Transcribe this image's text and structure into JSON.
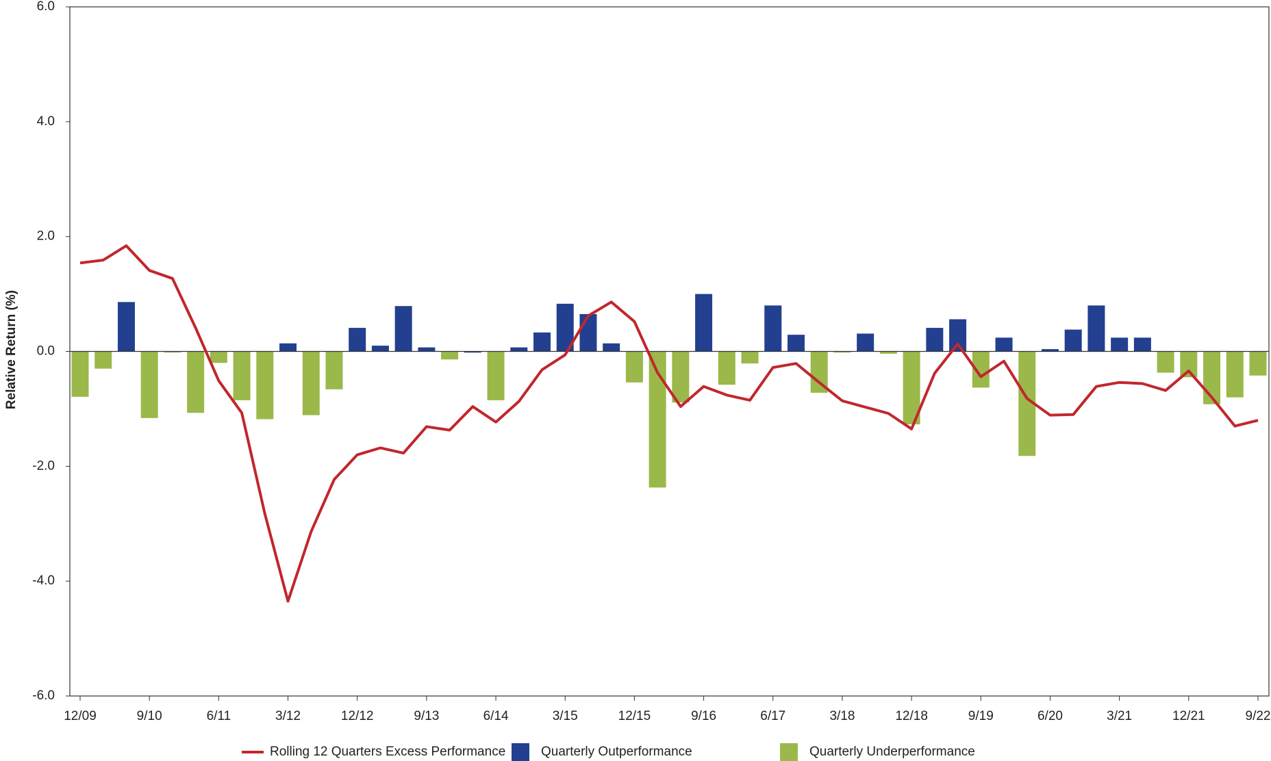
{
  "chart_data": {
    "type": "bar",
    "y_label": "Relative Return (%)",
    "categories": [
      "12/09",
      null,
      null,
      "9/10",
      null,
      null,
      "6/11",
      null,
      null,
      "3/12",
      null,
      null,
      "12/12",
      null,
      null,
      "9/13",
      null,
      null,
      "6/14",
      null,
      null,
      "3/15",
      null,
      null,
      "12/15",
      null,
      null,
      "9/16",
      null,
      null,
      "6/17",
      null,
      null,
      "3/18",
      null,
      null,
      "12/18",
      null,
      null,
      "9/19",
      null,
      null,
      "6/20",
      null,
      null,
      "3/21",
      null,
      null,
      "12/21",
      null,
      null,
      "9/22"
    ],
    "series": [
      {
        "name": "Rolling 12 Quarters Excess Performance",
        "kind": "line",
        "color": "#c0272d",
        "values": [
          1.54,
          1.59,
          1.84,
          1.41,
          1.27,
          0.41,
          -0.51,
          -1.07,
          -2.83,
          -4.35,
          -3.14,
          -2.23,
          -1.8,
          -1.68,
          -1.77,
          -1.31,
          -1.37,
          -0.96,
          -1.23,
          -0.87,
          -0.32,
          -0.06,
          0.62,
          0.86,
          0.52,
          -0.37,
          -0.96,
          -0.61,
          -0.76,
          -0.85,
          -0.28,
          -0.21,
          -0.54,
          -0.86,
          -0.97,
          -1.08,
          -1.35,
          -0.38,
          0.13,
          -0.44,
          -0.17,
          -0.82,
          -1.11,
          -1.1,
          -0.61,
          -0.54,
          -0.56,
          -0.68,
          -0.34,
          -0.8,
          -1.3,
          -1.2
        ]
      },
      {
        "name": "Quarterly Outperformance",
        "kind": "bar",
        "color": "#233f8f",
        "values": [
          null,
          null,
          0.86,
          null,
          null,
          null,
          null,
          null,
          null,
          0.14,
          null,
          null,
          0.41,
          0.1,
          0.79,
          0.07,
          null,
          -0.02,
          null,
          0.07,
          0.33,
          0.83,
          0.65,
          0.14,
          null,
          null,
          null,
          1.0,
          null,
          null,
          0.8,
          0.29,
          null,
          null,
          0.31,
          null,
          null,
          0.41,
          0.56,
          null,
          0.24,
          null,
          0.04,
          0.38,
          0.8,
          0.24,
          0.24,
          null,
          null,
          null,
          null,
          null
        ]
      },
      {
        "name": "Quarterly Underperformance",
        "kind": "bar",
        "color": "#9bb84a",
        "values": [
          -0.79,
          -0.3,
          null,
          -1.16,
          -0.02,
          -1.07,
          -0.2,
          -0.85,
          -1.18,
          null,
          -1.11,
          -0.66,
          null,
          null,
          null,
          null,
          -0.14,
          null,
          -0.85,
          null,
          null,
          null,
          null,
          null,
          -0.54,
          -2.37,
          -0.89,
          null,
          -0.58,
          -0.21,
          null,
          null,
          -0.72,
          -0.02,
          null,
          -0.04,
          -1.27,
          null,
          null,
          -0.63,
          null,
          -1.82,
          null,
          null,
          null,
          null,
          null,
          -0.37,
          -0.45,
          -0.92,
          -0.8,
          -0.42
        ]
      }
    ],
    "ylim": [
      -6,
      6
    ],
    "yticks": [
      {
        "value": -6,
        "label": "-6.0"
      },
      {
        "value": -4,
        "label": "-4.0"
      },
      {
        "value": -2,
        "label": "-2.0"
      },
      {
        "value": 0,
        "label": "0.0"
      },
      {
        "value": 2,
        "label": "2.0"
      },
      {
        "value": 4,
        "label": "4.0"
      },
      {
        "value": 6,
        "label": "6.0"
      }
    ],
    "grid": false,
    "legend": "bottom"
  }
}
